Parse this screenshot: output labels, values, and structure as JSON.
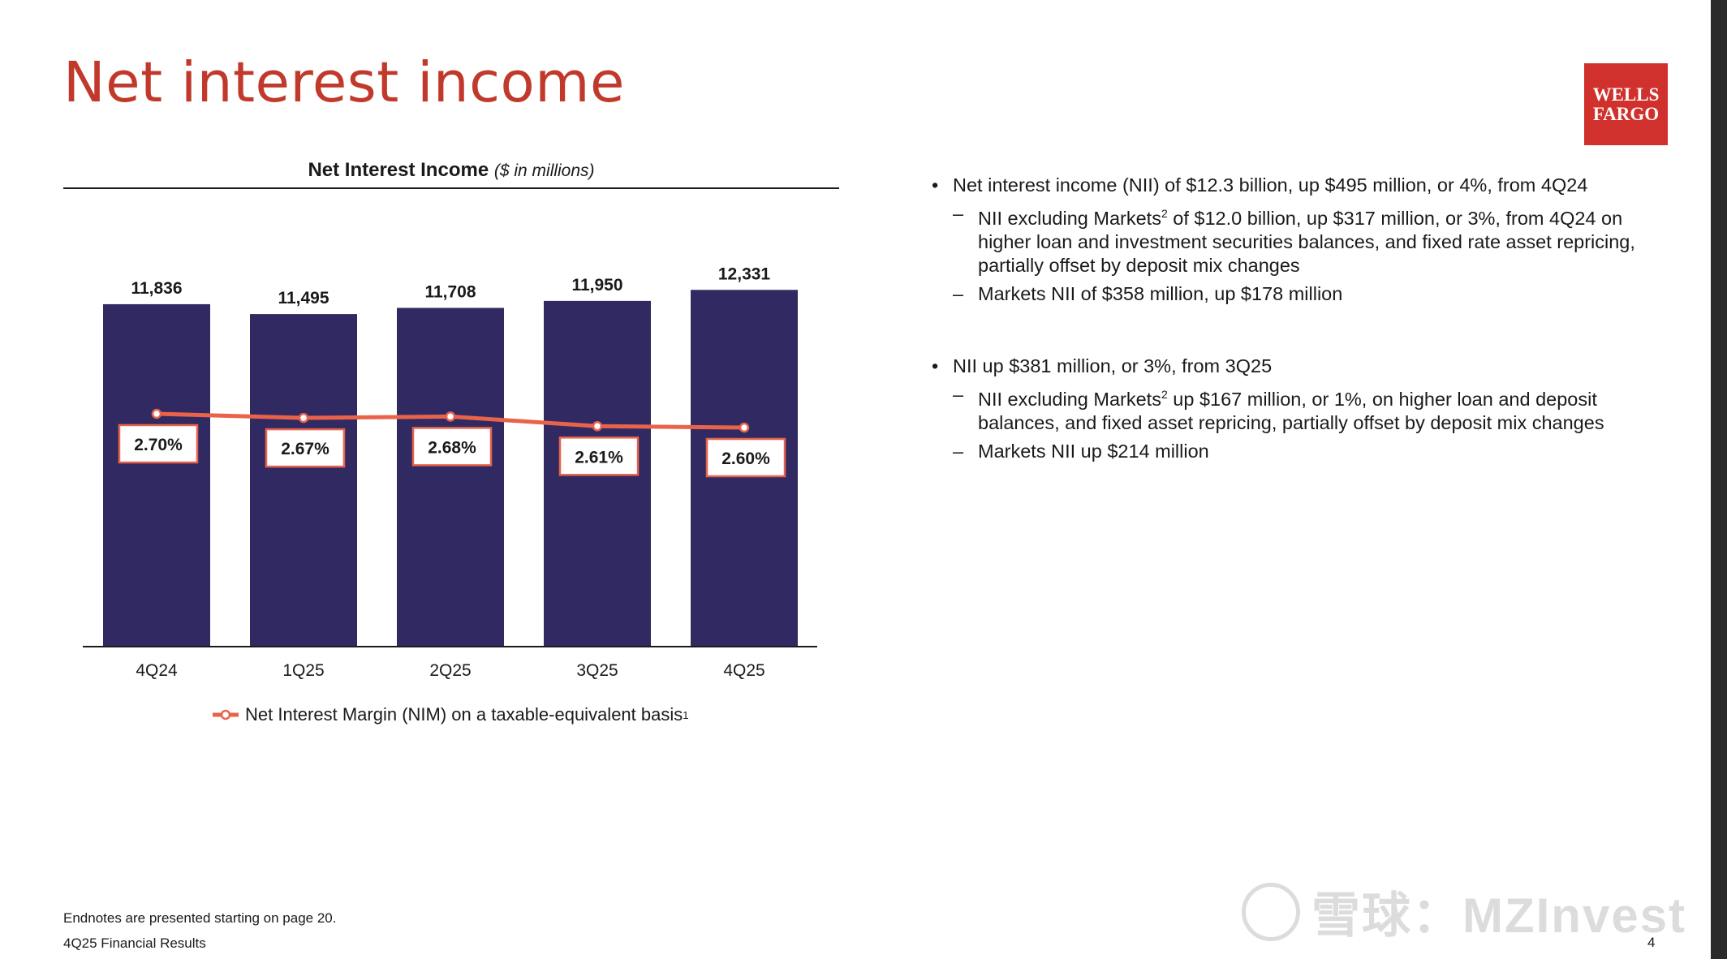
{
  "page": {
    "title": "Net interest income",
    "logo_line1": "WELLS",
    "logo_line2": "FARGO",
    "endnote": "Endnotes are presented starting on page 20.",
    "footer": "4Q25 Financial Results",
    "page_number": "4",
    "watermark": "雪球：MZInvest"
  },
  "chart_data": {
    "type": "bar",
    "title": "Net Interest Income",
    "subtitle": "($ in millions)",
    "categories": [
      "4Q24",
      "1Q25",
      "2Q25",
      "3Q25",
      "4Q25"
    ],
    "series": [
      {
        "name": "Net Interest Income",
        "type": "bar",
        "values": [
          11836,
          11495,
          11708,
          11950,
          12331
        ],
        "labels": [
          "11,836",
          "11,495",
          "11,708",
          "11,950",
          "12,331"
        ]
      },
      {
        "name": "Net Interest Margin (NIM) on a taxable-equivalent basis",
        "type": "line",
        "values": [
          2.7,
          2.67,
          2.68,
          2.61,
          2.6
        ],
        "labels": [
          "2.70%",
          "2.67%",
          "2.68%",
          "2.61%",
          "2.60%"
        ]
      }
    ],
    "legend_label": "Net Interest Margin (NIM) on a taxable-equivalent basis",
    "legend_sup": "1",
    "legend_position": "bottom",
    "grid": false,
    "colors": {
      "bar": "#312a62",
      "line": "#e8634a",
      "label_border": "#e8634a"
    }
  },
  "bullets": {
    "b1": "Net interest income (NII) of $12.3 billion, up $495 million, or 4%, from 4Q24",
    "b1_sub1_pre": "NII excluding Markets",
    "b1_sub1_sup": "2",
    "b1_sub1_post": " of $12.0 billion, up $317 million, or 3%, from 4Q24 on higher loan and investment securities balances, and fixed rate asset repricing, partially offset by deposit mix changes",
    "b1_sub2": "Markets NII of $358 million, up $178 million",
    "b2": "NII up $381 million, or 3%, from 3Q25",
    "b2_sub1_pre": "NII excluding Markets",
    "b2_sub1_sup": "2",
    "b2_sub1_post": " up $167 million, or 1%, on higher loan and deposit balances, and fixed asset repricing, partially offset by deposit mix changes",
    "b2_sub2": "Markets NII up $214 million"
  }
}
